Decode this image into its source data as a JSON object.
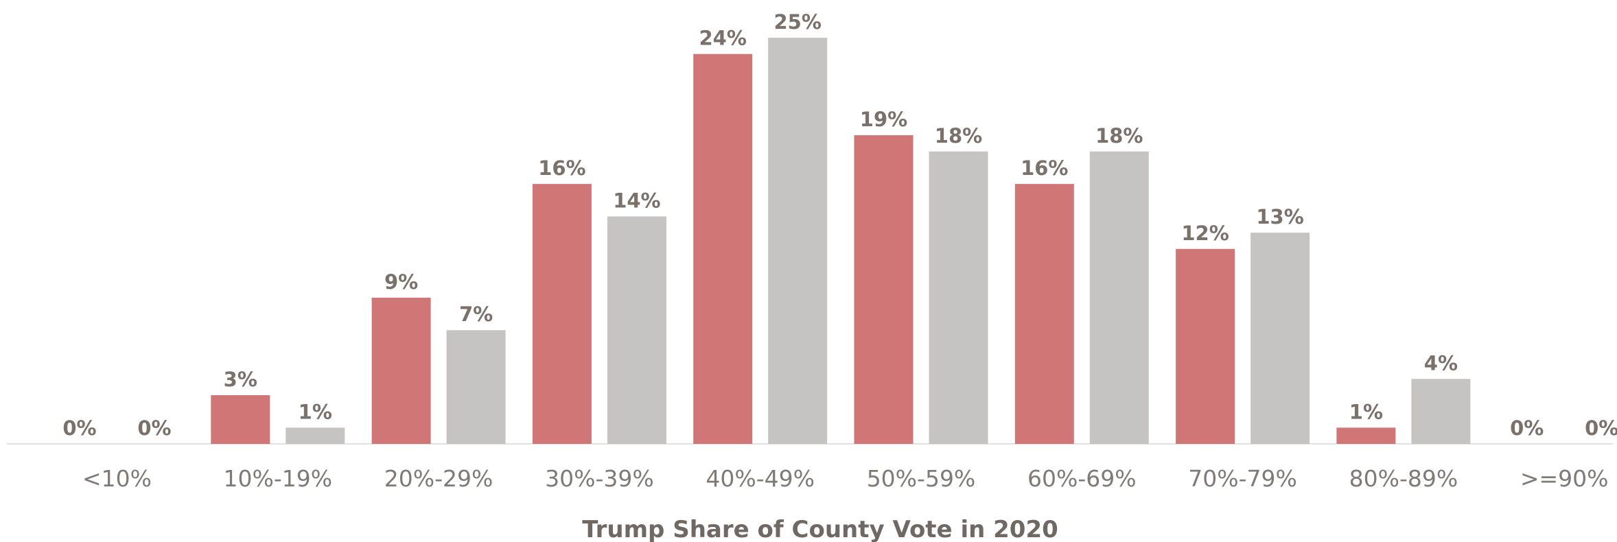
{
  "chart_data": {
    "type": "bar",
    "categories": [
      "<10%",
      "10%-19%",
      "20%-29%",
      "30%-39%",
      "40%-49%",
      "50%-59%",
      "60%-69%",
      "70%-79%",
      "80%-89%",
      ">=90%"
    ],
    "series": [
      {
        "values": [
          0,
          3,
          9,
          16,
          24,
          19,
          16,
          12,
          1,
          0
        ],
        "labels": [
          "0%",
          "3%",
          "9%",
          "16%",
          "24%",
          "19%",
          "16%",
          "12%",
          "1%",
          "0%"
        ],
        "color": "#d07676"
      },
      {
        "values": [
          0,
          1,
          7,
          14,
          25,
          18,
          18,
          13,
          4,
          0
        ],
        "labels": [
          "0%",
          "1%",
          "7%",
          "14%",
          "25%",
          "18%",
          "18%",
          "13%",
          "4%",
          "0%"
        ],
        "color": "#c5c4c3"
      }
    ],
    "title": "",
    "xlabel": "Trump Share of County Vote in 2020",
    "ylabel": "",
    "ylim": [
      0,
      25
    ],
    "grid": false,
    "legend": "none",
    "baseline_color": "#e3e0de"
  }
}
